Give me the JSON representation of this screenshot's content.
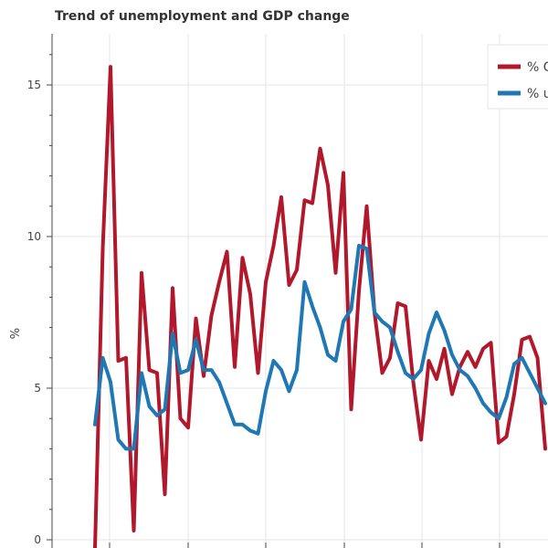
{
  "chart_data": {
    "type": "line",
    "title": "Trend of unemployment and GDP change",
    "xlabel": "",
    "ylabel": "%",
    "ylim": [
      0,
      16.5
    ],
    "yticks": [
      0,
      5,
      10,
      15
    ],
    "grid": true,
    "legend": {
      "placement": "top-right"
    },
    "series": [
      {
        "name": "% G",
        "color": "#b2182b",
        "values": [
          -0.3,
          9.6,
          15.6,
          5.9,
          6.0,
          0.3,
          8.8,
          5.6,
          5.5,
          1.5,
          8.3,
          4.0,
          3.7,
          7.3,
          5.4,
          7.4,
          8.5,
          9.5,
          5.7,
          9.3,
          8.1,
          5.5,
          8.5,
          9.7,
          11.3,
          8.4,
          8.9,
          11.2,
          11.1,
          12.9,
          11.7,
          8.8,
          12.1,
          4.3,
          8.2,
          11.0,
          7.5,
          5.5,
          6.0,
          7.8,
          7.7,
          5.2,
          3.3,
          5.9,
          5.3,
          6.3,
          4.8,
          5.7,
          6.2,
          5.7,
          6.3,
          6.5,
          3.2,
          3.4,
          4.8,
          6.6,
          6.7,
          6.0,
          3.0
        ]
      },
      {
        "name": "% u",
        "color": "#1f77b4",
        "values": [
          3.8,
          6.0,
          5.2,
          3.3,
          3.0,
          3.0,
          5.5,
          4.4,
          4.1,
          4.3,
          6.8,
          5.5,
          5.6,
          6.6,
          5.6,
          5.6,
          5.2,
          4.5,
          3.8,
          3.8,
          3.6,
          3.5,
          4.9,
          5.9,
          5.6,
          4.9,
          5.6,
          8.5,
          7.7,
          7.0,
          6.1,
          5.9,
          7.2,
          7.6,
          9.7,
          9.6,
          7.5,
          7.2,
          7.0,
          6.2,
          5.5,
          5.3,
          5.6,
          6.8,
          7.5,
          6.9,
          6.1,
          5.6,
          5.4,
          5.0,
          4.5,
          4.2,
          4.0,
          4.7,
          5.8,
          6.0,
          5.5,
          5.0,
          4.5
        ]
      }
    ]
  }
}
